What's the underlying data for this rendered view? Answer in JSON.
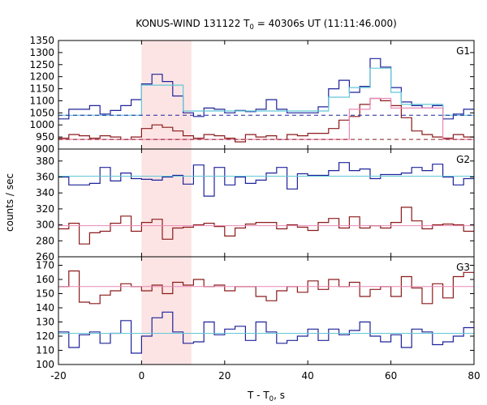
{
  "chart_data": {
    "type": "line",
    "title_main": "KONUS-WIND 131122 T",
    "title_sub": "0",
    "title_rest": " = 40306s UT (11:11:46.000)",
    "xlabel_main": "T - T",
    "xlabel_sub": "0",
    "xlabel_rest": ", s",
    "ylabel": "counts / sec",
    "xlim": [
      -20,
      80
    ],
    "x_ticks": [
      "-20",
      "0",
      "20",
      "40",
      "60",
      "80"
    ],
    "highlight_interval": [
      0,
      12
    ],
    "panels": [
      {
        "label": "G1",
        "ylim": [
          900,
          1350
        ],
        "y_ticks": [
          "900",
          "950",
          "1000",
          "1050",
          "1100",
          "1150",
          "1200",
          "1250",
          "1300",
          "1350"
        ],
        "series": [
          {
            "color": "#1f239a",
            "style": "step",
            "edges": [
              -20,
              -17.5,
              -15,
              -12.5,
              -10,
              -7.5,
              -5,
              -2.5,
              0,
              2.5,
              5,
              7.5,
              10,
              12.5,
              15,
              17.5,
              20,
              22.5,
              25,
              27.5,
              30,
              32.5,
              35,
              37.5,
              40,
              42.5,
              45,
              47.5,
              50,
              52.5,
              55,
              57.5,
              60,
              62.5,
              65,
              67.5,
              70,
              72.5,
              75,
              77.5,
              80
            ],
            "values": [
              1025,
              1065,
              1065,
              1080,
              1045,
              1060,
              1080,
              1105,
              1170,
              1210,
              1180,
              1120,
              1050,
              1035,
              1070,
              1065,
              1050,
              1060,
              1055,
              1065,
              1105,
              1065,
              1050,
              1050,
              1050,
              1075,
              1150,
              1185,
              1135,
              1160,
              1275,
              1240,
              1155,
              1095,
              1080,
              1070,
              1080,
              1025,
              1045,
              1065
            ]
          },
          {
            "color": "#8b1a1a",
            "style": "step",
            "edges": [
              -20,
              -17.5,
              -15,
              -12.5,
              -10,
              -7.5,
              -5,
              -2.5,
              0,
              2.5,
              5,
              7.5,
              10,
              12.5,
              15,
              17.5,
              20,
              22.5,
              25,
              27.5,
              30,
              32.5,
              35,
              37.5,
              40,
              42.5,
              45,
              47.5,
              50,
              52.5,
              55,
              57.5,
              60,
              62.5,
              65,
              67.5,
              70,
              72.5,
              75,
              77.5,
              80
            ],
            "values": [
              945,
              960,
              955,
              945,
              955,
              950,
              940,
              950,
              985,
              1000,
              990,
              975,
              955,
              945,
              960,
              955,
              945,
              930,
              960,
              950,
              955,
              940,
              960,
              955,
              965,
              965,
              985,
              1020,
              1035,
              1085,
              1110,
              1100,
              1080,
              1030,
              975,
              960,
              950,
              945,
              960,
              950
            ]
          },
          {
            "color": "#62c8d8",
            "style": "step",
            "edges": [
              -20,
              -17.5,
              -15,
              -12.5,
              -10,
              -7.5,
              -5,
              -2.5,
              0,
              2.5,
              5,
              7.5,
              10,
              12.5,
              15,
              17.5,
              20,
              22.5,
              25,
              27.5,
              30,
              32.5,
              35,
              37.5,
              40,
              42.5,
              45,
              47.5,
              50,
              52.5,
              55,
              57.5,
              60,
              62.5,
              65,
              67.5,
              70,
              72.5,
              75,
              77.5,
              80
            ],
            "values": [
              1040,
              1040,
              1040,
              1040,
              1040,
              1040,
              1040,
              1040,
              1165,
              1165,
              1165,
              1165,
              1058,
              1058,
              1058,
              1058,
              1058,
              1058,
              1058,
              1058,
              1058,
              1058,
              1058,
              1058,
              1058,
              1058,
              1115,
              1115,
              1155,
              1155,
              1235,
              1235,
              1135,
              1085,
              1085,
              1085,
              1085,
              1040,
              1040,
              1040
            ]
          },
          {
            "color": "#e889b6",
            "style": "step",
            "edges": [
              -20,
              -17.5,
              -15,
              -12.5,
              -10,
              -7.5,
              -5,
              -2.5,
              0,
              2.5,
              5,
              7.5,
              10,
              12.5,
              15,
              17.5,
              20,
              22.5,
              25,
              27.5,
              30,
              32.5,
              35,
              37.5,
              40,
              42.5,
              45,
              47.5,
              50,
              52.5,
              55,
              57.5,
              60,
              62.5,
              65,
              67.5,
              70,
              72.5,
              75,
              77.5,
              80
            ],
            "values": [
              940,
              940,
              940,
              940,
              940,
              940,
              940,
              940,
              940,
              940,
              940,
              940,
              940,
              940,
              940,
              940,
              940,
              940,
              940,
              940,
              940,
              940,
              940,
              940,
              940,
              940,
              940,
              940,
              1065,
              1065,
              1110,
              1110,
              1070,
              1070,
              1070,
              1070,
              1070,
              940,
              940,
              940
            ]
          },
          {
            "color": "#1f239a",
            "style": "dashed",
            "value": 1040
          },
          {
            "color": "#8b1a1a",
            "style": "dashed",
            "value": 940
          }
        ]
      },
      {
        "label": "G2",
        "ylim": [
          260,
          395
        ],
        "y_ticks": [
          "260",
          "280",
          "300",
          "320",
          "340",
          "360",
          "380"
        ],
        "series": [
          {
            "color": "#1f239a",
            "style": "step",
            "edges": [
              -20,
              -17.5,
              -15,
              -12.5,
              -10,
              -7.5,
              -5,
              -2.5,
              0,
              2.5,
              5,
              7.5,
              10,
              12.5,
              15,
              17.5,
              20,
              22.5,
              25,
              27.5,
              30,
              32.5,
              35,
              37.5,
              40,
              42.5,
              45,
              47.5,
              50,
              52.5,
              55,
              57.5,
              60,
              62.5,
              65,
              67.5,
              70,
              72.5,
              75,
              77.5,
              80
            ],
            "values": [
              360,
              350,
              350,
              352,
              372,
              355,
              365,
              358,
              357,
              356,
              360,
              362,
              351,
              375,
              336,
              372,
              350,
              360,
              352,
              356,
              365,
              372,
              345,
              364,
              362,
              362,
              368,
              378,
              368,
              370,
              358,
              363,
              363,
              365,
              372,
              368,
              376,
              360,
              350,
              358
            ]
          },
          {
            "color": "#8b1a1a",
            "style": "step",
            "edges": [
              -20,
              -17.5,
              -15,
              -12.5,
              -10,
              -7.5,
              -5,
              -2.5,
              0,
              2.5,
              5,
              7.5,
              10,
              12.5,
              15,
              17.5,
              20,
              22.5,
              25,
              27.5,
              30,
              32.5,
              35,
              37.5,
              40,
              42.5,
              45,
              47.5,
              50,
              52.5,
              55,
              57.5,
              60,
              62.5,
              65,
              67.5,
              70,
              72.5,
              75,
              77.5,
              80
            ],
            "values": [
              295,
              302,
              276,
              290,
              292,
              302,
              311,
              292,
              303,
              307,
              282,
              296,
              297,
              300,
              302,
              298,
              286,
              296,
              301,
              303,
              303,
              295,
              300,
              297,
              293,
              303,
              308,
              296,
              310,
              296,
              299,
              296,
              303,
              322,
              305,
              295,
              300,
              301,
              300,
              292
            ]
          },
          {
            "color": "#62c8d8",
            "style": "flat",
            "value": 361
          },
          {
            "color": "#e889b6",
            "style": "flat",
            "value": 299
          }
        ]
      },
      {
        "label": "G3",
        "ylim": [
          100,
          176
        ],
        "y_ticks": [
          "100",
          "110",
          "120",
          "130",
          "140",
          "150",
          "160",
          "170"
        ],
        "series": [
          {
            "color": "#8b1a1a",
            "style": "step",
            "edges": [
              -20,
              -17.5,
              -15,
              -12.5,
              -10,
              -7.5,
              -5,
              -2.5,
              0,
              2.5,
              5,
              7.5,
              10,
              12.5,
              15,
              17.5,
              20,
              22.5,
              25,
              27.5,
              30,
              32.5,
              35,
              37.5,
              40,
              42.5,
              45,
              47.5,
              50,
              52.5,
              55,
              57.5,
              60,
              62.5,
              65,
              67.5,
              70,
              72.5,
              75,
              77.5,
              80
            ],
            "values": [
              155,
              166,
              144,
              143,
              149,
              152,
              157,
              155,
              152,
              156,
              150,
              158,
              156,
              160,
              155,
              156,
              152,
              155,
              155,
              148,
              145,
              152,
              155,
              151,
              159,
              153,
              160,
              155,
              158,
              148,
              153,
              155,
              148,
              162,
              154,
              143,
              157,
              147,
              162,
              165
            ]
          },
          {
            "color": "#1f239a",
            "style": "step",
            "edges": [
              -20,
              -17.5,
              -15,
              -12.5,
              -10,
              -7.5,
              -5,
              -2.5,
              0,
              2.5,
              5,
              7.5,
              10,
              12.5,
              15,
              17.5,
              20,
              22.5,
              25,
              27.5,
              30,
              32.5,
              35,
              37.5,
              40,
              42.5,
              45,
              47.5,
              50,
              52.5,
              55,
              57.5,
              60,
              62.5,
              65,
              67.5,
              70,
              72.5,
              75,
              77.5,
              80
            ],
            "values": [
              123,
              112,
              121,
              123,
              115,
              122,
              131,
              108,
              120,
              133,
              137,
              123,
              115,
              116,
              130,
              121,
              125,
              127,
              117,
              130,
              123,
              115,
              117,
              120,
              125,
              117,
              125,
              121,
              124,
              130,
              120,
              116,
              121,
              112,
              125,
              123,
              114,
              116,
              120,
              126
            ]
          },
          {
            "color": "#e889b6",
            "style": "flat",
            "value": 155
          },
          {
            "color": "#62c8d8",
            "style": "flat",
            "value": 122
          }
        ]
      }
    ]
  }
}
